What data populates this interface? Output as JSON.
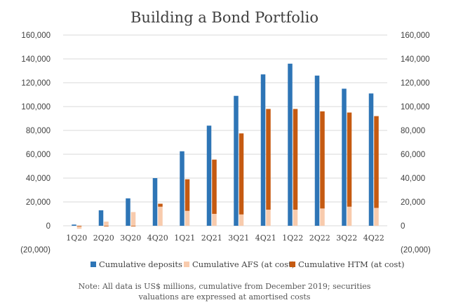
{
  "chart_data": {
    "type": "bar",
    "title": "Building a Bond Portfolio",
    "categories": [
      "1Q20",
      "2Q20",
      "3Q20",
      "4Q20",
      "1Q21",
      "2Q21",
      "3Q21",
      "4Q21",
      "1Q22",
      "2Q22",
      "3Q22",
      "4Q22"
    ],
    "series": [
      {
        "name": "Cumulative deposits",
        "color": "#2e75b6",
        "stacked": false,
        "values": [
          1000,
          13000,
          23000,
          40000,
          62500,
          84000,
          109000,
          127000,
          136000,
          126000,
          115000,
          111000
        ]
      },
      {
        "name": "Cumulative AFS (at cost)",
        "color": "#f8cbad",
        "stack": "securities",
        "values": [
          -2500,
          3500,
          11500,
          16000,
          12500,
          10000,
          9500,
          13500,
          13500,
          14500,
          16000,
          15000
        ]
      },
      {
        "name": "Cumulative HTM (at cost)",
        "color": "#c55a11",
        "stack": "securities",
        "values": [
          0,
          -500,
          -500,
          2500,
          26500,
          45500,
          68000,
          84500,
          84500,
          81500,
          79000,
          77000
        ]
      }
    ],
    "ylim": [
      -20000,
      160000
    ],
    "yticks": [
      "(20,000)",
      "0",
      "20,000",
      "40,000",
      "60,000",
      "80,000",
      "100,000",
      "120,000",
      "140,000",
      "160,000"
    ],
    "secondary_axis": true,
    "grid": true,
    "legend": "bottom",
    "note": [
      "Note: All data is US$ millions, cumulative from December 2019; securities",
      "valuations are expressed at amortised costs"
    ]
  }
}
